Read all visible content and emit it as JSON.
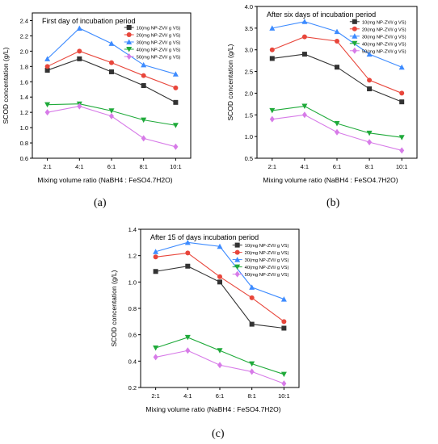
{
  "panel_labels": [
    "(a)",
    "(b)",
    "(c)"
  ],
  "chart_data": [
    {
      "type": "line",
      "title": "First day of incubation period",
      "xlabel": "Mixing volume ratio (NaBH4 : FeSO4.7H2O)",
      "ylabel": "SCOD concentation (g/L)",
      "categories": [
        "2:1",
        "4:1",
        "6:1",
        "8:1",
        "10:1"
      ],
      "ylim": [
        0.6,
        2.5
      ],
      "yticks": [
        "0.6",
        "0.8",
        "1.0",
        "1.2",
        "1.4",
        "1.6",
        "1.8",
        "2.0",
        "2.2",
        "2.4"
      ],
      "legend_position": "top-right",
      "series": [
        {
          "name": "10(mg NP-ZVI/ g VS)",
          "color": "#333333",
          "marker": "square",
          "values": [
            1.75,
            1.9,
            1.73,
            1.55,
            1.33
          ]
        },
        {
          "name": "20(mg NP-ZVI/ g VS)",
          "color": "#e8463b",
          "marker": "circle",
          "values": [
            1.8,
            2.0,
            1.85,
            1.68,
            1.52
          ]
        },
        {
          "name": "30(mg NP-ZVI/ g VS)",
          "color": "#3d8bff",
          "marker": "triangle-up",
          "values": [
            1.9,
            2.3,
            2.1,
            1.82,
            1.7
          ]
        },
        {
          "name": "40(mg NP-ZVI/ g VS)",
          "color": "#1faa3a",
          "marker": "triangle-down",
          "values": [
            1.3,
            1.31,
            1.22,
            1.1,
            1.03
          ]
        },
        {
          "name": "50(mg NP-ZVI/ g VS)",
          "color": "#d77be8",
          "marker": "diamond",
          "values": [
            1.2,
            1.28,
            1.15,
            0.86,
            0.75
          ]
        }
      ]
    },
    {
      "type": "line",
      "title": "After six days of incubation period",
      "xlabel": "Mixing volume ratio (NaBH4 : FeSO4.7H2O)",
      "ylabel": "SCOD concentation (g/L)",
      "categories": [
        "2:1",
        "4:1",
        "6:1",
        "8:1",
        "10:1"
      ],
      "ylim": [
        0.5,
        4.0
      ],
      "yticks": [
        "0.5",
        "1.0",
        "1.5",
        "2.0",
        "2.5",
        "3.0",
        "3.5",
        "4.0"
      ],
      "legend_position": "top-right",
      "series": [
        {
          "name": "10(mg NP-ZVI/ g VS)",
          "color": "#333333",
          "marker": "square",
          "values": [
            2.8,
            2.9,
            2.6,
            2.1,
            1.8
          ]
        },
        {
          "name": "20(mg NP-ZVI/ g VS)",
          "color": "#e8463b",
          "marker": "circle",
          "values": [
            3.0,
            3.3,
            3.2,
            2.3,
            2.0
          ]
        },
        {
          "name": "30(mg NP-ZVI/ g VS)",
          "color": "#3d8bff",
          "marker": "triangle-up",
          "values": [
            3.5,
            3.65,
            3.42,
            2.9,
            2.6
          ]
        },
        {
          "name": "40(mg NP-ZVI/ g VS)",
          "color": "#1faa3a",
          "marker": "triangle-down",
          "values": [
            1.6,
            1.7,
            1.3,
            1.08,
            0.98
          ]
        },
        {
          "name": "50(mg NP-ZVI/ g VS)",
          "color": "#d77be8",
          "marker": "diamond",
          "values": [
            1.4,
            1.5,
            1.1,
            0.87,
            0.68
          ]
        }
      ]
    },
    {
      "type": "line",
      "title": "After 15 of days incubation period",
      "xlabel": "Mixing volume ratio (NaBH4 : FeSO4.7H2O)",
      "ylabel": "SCOD concentation (g/L)",
      "categories": [
        "2:1",
        "4:1",
        "6:1",
        "8:1",
        "10:1"
      ],
      "ylim": [
        0.2,
        1.4
      ],
      "yticks": [
        "0.2",
        "0.4",
        "0.6",
        "0.8",
        "1.0",
        "1.2",
        "1.4"
      ],
      "legend_position": "top-right",
      "series": [
        {
          "name": "10(mg NP-ZVI/ g VS)",
          "color": "#333333",
          "marker": "square",
          "values": [
            1.08,
            1.12,
            1.0,
            0.68,
            0.65
          ]
        },
        {
          "name": "20(mg NP-ZVI/ g VS)",
          "color": "#e8463b",
          "marker": "circle",
          "values": [
            1.19,
            1.22,
            1.04,
            0.88,
            0.7
          ]
        },
        {
          "name": "30(mg NP-ZVI/ g VS)",
          "color": "#3d8bff",
          "marker": "triangle-up",
          "values": [
            1.23,
            1.3,
            1.27,
            0.96,
            0.87
          ]
        },
        {
          "name": "40(mg NP-ZVI/ g VS)",
          "color": "#1faa3a",
          "marker": "triangle-down",
          "values": [
            0.5,
            0.58,
            0.48,
            0.38,
            0.3
          ]
        },
        {
          "name": "50(mg NP-ZVI/ g VS)",
          "color": "#d77be8",
          "marker": "diamond",
          "values": [
            0.43,
            0.48,
            0.37,
            0.32,
            0.23
          ]
        }
      ]
    }
  ]
}
